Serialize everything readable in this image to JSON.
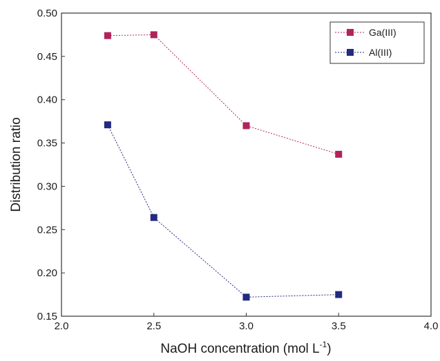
{
  "chart_data": {
    "type": "line",
    "xlabel": "NaOH concentration (mol L",
    "xlabel_superscript": "-1",
    "xlabel_suffix": ")",
    "ylabel": "Distribution ratio",
    "xlim": [
      2.0,
      4.0
    ],
    "ylim": [
      0.15,
      0.5
    ],
    "xticks": [
      2.0,
      2.5,
      3.0,
      3.5,
      4.0
    ],
    "xtick_labels": [
      "2.0",
      "2.5",
      "3.0",
      "3.5",
      "4.0"
    ],
    "yticks": [
      0.15,
      0.2,
      0.25,
      0.3,
      0.35,
      0.4,
      0.45,
      0.5
    ],
    "ytick_labels": [
      "0.15",
      "0.20",
      "0.25",
      "0.30",
      "0.35",
      "0.40",
      "0.45",
      "0.50"
    ],
    "grid": false,
    "legend_position": "top-right",
    "x": [
      2.25,
      2.5,
      3.0,
      3.5
    ],
    "series": [
      {
        "name": "Ga(III)",
        "values": [
          0.474,
          0.475,
          0.37,
          0.337
        ],
        "color": "#b0245c",
        "marker": "square",
        "line_style": "dotted"
      },
      {
        "name": "Al(III)",
        "values": [
          0.371,
          0.264,
          0.172,
          0.175
        ],
        "color": "#232a80",
        "marker": "square",
        "line_style": "dotted"
      }
    ]
  }
}
